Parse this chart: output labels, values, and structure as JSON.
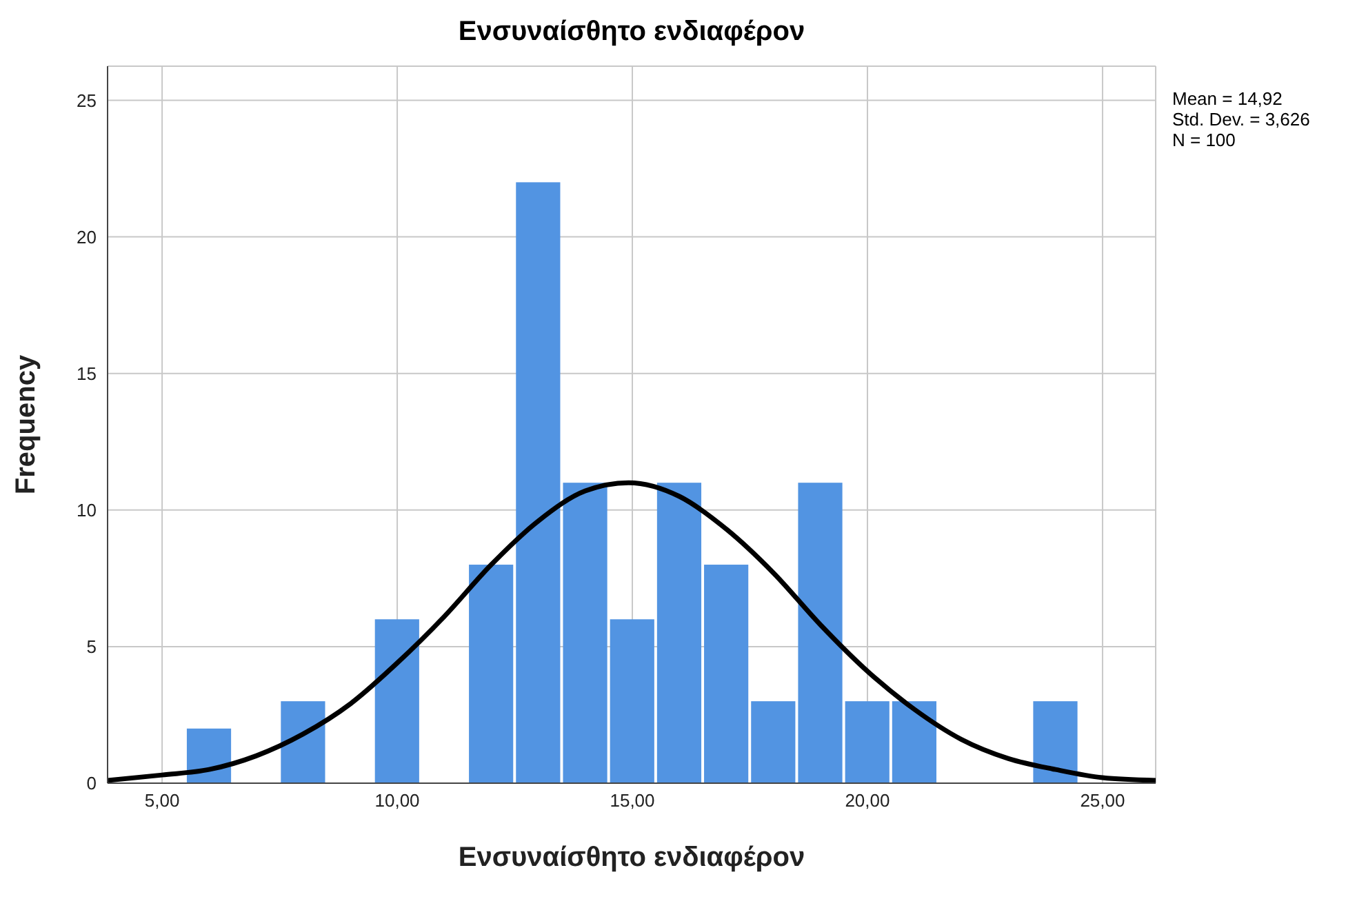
{
  "chart_data": {
    "type": "histogram",
    "title": "Ενσυναίσθητο ενδιαφέρον",
    "xlabel": "Ενσυναίσθητο ενδιαφέρον",
    "ylabel": "Frequency",
    "annotations": [
      "Mean = 14,92",
      "Std. Dev. = 3,626",
      "N = 100"
    ],
    "bins": [
      5.5,
      6.5,
      7.5,
      8.5,
      9.5,
      10.5,
      11.5,
      12.5,
      13.5,
      14.5,
      15.5,
      16.5,
      17.5,
      18.5,
      19.5,
      20.5,
      21.5,
      22.5,
      23.5,
      24.5
    ],
    "values": [
      2,
      0,
      3,
      0,
      6,
      0,
      8,
      22,
      11,
      6,
      11,
      8,
      3,
      11,
      3,
      3,
      0,
      0,
      3
    ],
    "color": "#5294e2",
    "series": [
      {
        "type": "line",
        "color": "#000000",
        "x": [
          3.84,
          5,
          6,
          7,
          8,
          9,
          10,
          11,
          12,
          13,
          14,
          14.92,
          16,
          17,
          18,
          19,
          20,
          21,
          22,
          23,
          24,
          25,
          26.13
        ],
        "values": [
          0.1,
          0.3,
          0.5,
          1.0,
          1.8,
          2.9,
          4.4,
          6.1,
          8.0,
          9.6,
          10.7,
          11.0,
          10.5,
          9.3,
          7.7,
          5.8,
          4.1,
          2.7,
          1.6,
          0.9,
          0.5,
          0.2,
          0.1
        ]
      }
    ],
    "xlim": [
      3.84,
      26.13
    ],
    "xticks": [
      {
        "value": 5,
        "label": "5,00"
      },
      {
        "value": 10,
        "label": "10,00"
      },
      {
        "value": 15,
        "label": "15,00"
      },
      {
        "value": 20,
        "label": "20,00"
      },
      {
        "value": 25,
        "label": "25,00"
      }
    ],
    "ylim": [
      0,
      26.25
    ],
    "yticks": [
      0,
      5,
      10,
      15,
      20,
      25
    ],
    "grid": true,
    "legend": false,
    "marker": "none",
    "line_style": "solid"
  }
}
